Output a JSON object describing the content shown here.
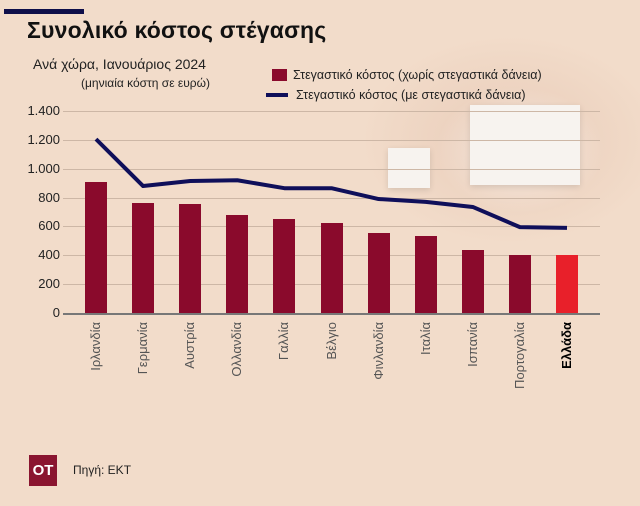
{
  "header": {
    "title": "Συνολικό κόστος στέγασης",
    "subtitle": "Ανά χώρα, Ιανουάριος 2024",
    "unit_note": "(μηνιαία κόστη σε ευρώ)"
  },
  "legend": [
    {
      "label": "Στεγαστικό κόστος (χωρίς στεγαστικά δάνεια)",
      "color": "#8a0a2c",
      "type": "bar"
    },
    {
      "label": "Στεγαστικό κόστος (με στεγαστικά δάνεια)",
      "color": "#0f0f5a",
      "type": "line"
    }
  ],
  "y_ticks": [
    "1.400",
    "1.200",
    "1.000",
    "800",
    "600",
    "400",
    "200",
    "0"
  ],
  "footer": {
    "logo": "OT",
    "source": "Πηγή: ΕΚΤ"
  },
  "colors": {
    "bar": "#8a0a2c",
    "highlight_bar": "#e8202a",
    "line": "#0f0f5a",
    "background": "#f2dcca"
  },
  "chart_data": {
    "type": "bar",
    "title": "Συνολικό κόστος στέγασης",
    "subtitle": "Ανά χώρα, Ιανουάριος 2024",
    "ylabel": "μηνιαία κόστη σε ευρώ",
    "xlabel": "",
    "ylim": [
      0,
      1400
    ],
    "yticks": [
      0,
      200,
      400,
      600,
      800,
      1000,
      1200,
      1400
    ],
    "grid": true,
    "legend_position": "top-right",
    "categories": [
      "Ιρλανδία",
      "Γερμανία",
      "Αυστρία",
      "Ολλανδία",
      "Γαλλία",
      "Βέλγιο",
      "Φινλανδία",
      "Ιταλία",
      "Ισπανία",
      "Πορτογαλία",
      "Ελλάδα"
    ],
    "highlight": "Ελλάδα",
    "series": [
      {
        "name": "Στεγαστικό κόστος (χωρίς στεγαστικά δάνεια)",
        "type": "bar",
        "values": [
          908,
          762,
          755,
          680,
          651,
          624,
          554,
          534,
          437,
          400,
          400
        ]
      },
      {
        "name": "Στεγαστικό κόστος (με στεγαστικά δάνεια)",
        "type": "line",
        "values": [
          1205,
          880,
          915,
          920,
          865,
          865,
          790,
          770,
          735,
          595,
          590
        ]
      }
    ]
  }
}
